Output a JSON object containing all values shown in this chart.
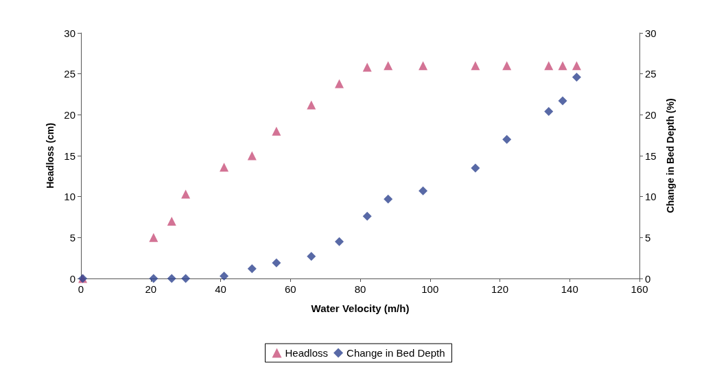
{
  "chart_data": {
    "type": "scatter",
    "xlabel": "Water Velocity (m/h)",
    "ylabel": "Headloss (cm)",
    "y2label": "Change in Bed Depth (%)",
    "xlim": [
      0,
      160
    ],
    "xticks": [
      0,
      20,
      40,
      60,
      80,
      100,
      120,
      140,
      160
    ],
    "ylim": [
      0,
      30
    ],
    "yticks": [
      0,
      5,
      10,
      15,
      20,
      25,
      30
    ],
    "y2lim": [
      0,
      30
    ],
    "y2ticks": [
      0,
      5,
      10,
      15,
      20,
      25,
      30
    ],
    "grid": false,
    "legend": "bottom",
    "series": [
      {
        "name": "Headloss",
        "color": "#c8507a",
        "marker": "triangle",
        "x": [
          0.5,
          20.8,
          26,
          30,
          41,
          49,
          56,
          66,
          74,
          82,
          88,
          98,
          113,
          122,
          134,
          138,
          142
        ],
        "values": [
          0,
          5,
          7,
          10.3,
          13.6,
          15,
          18,
          21.2,
          23.8,
          25.8,
          26,
          26,
          26,
          26,
          26,
          26,
          26
        ]
      },
      {
        "name": "Change in Bed Depth",
        "color": "#2e4390",
        "marker": "diamond",
        "axis": "y2",
        "x": [
          0.5,
          20.8,
          26,
          30,
          41,
          49,
          56,
          66,
          74,
          82,
          88,
          98,
          113,
          122,
          134,
          138,
          142
        ],
        "values": [
          0,
          0,
          0,
          0,
          0.3,
          1.2,
          1.9,
          2.7,
          4.5,
          7.6,
          9.7,
          10.7,
          13.5,
          17,
          20.4,
          21.7,
          24.6
        ]
      }
    ]
  }
}
